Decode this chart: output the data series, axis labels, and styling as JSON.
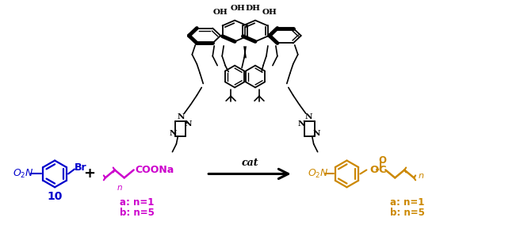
{
  "bg_color": "#ffffff",
  "black": "#000000",
  "blue": "#0000cc",
  "magenta": "#cc00cc",
  "orange": "#cc8800",
  "figsize": [
    6.37,
    3.13
  ],
  "dpi": 100,
  "oh_labels": [
    "OH",
    "OHDH",
    "OH"
  ],
  "cat_text": "cat",
  "label_10": "10",
  "label_n_reactant": "n",
  "label_coona": "COONa",
  "label_ab1": "a: n=1",
  "label_ab2": "b: n=5"
}
